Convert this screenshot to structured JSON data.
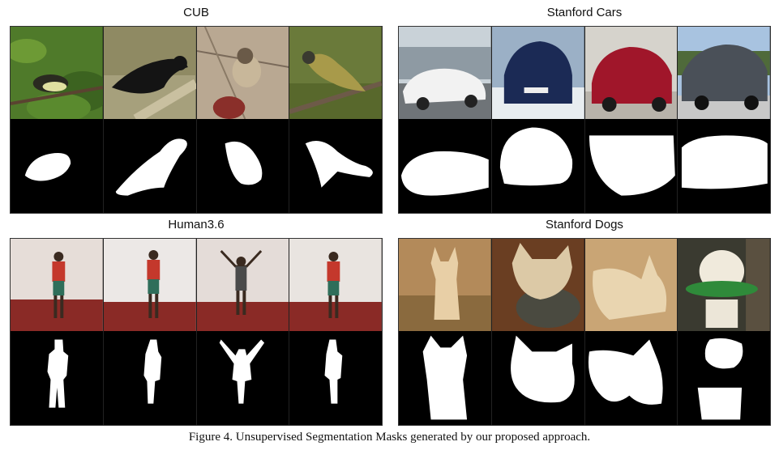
{
  "panels": [
    {
      "title": "CUB",
      "photo_alts": [
        "bird-1-photo",
        "bird-2-photo",
        "bird-3-photo",
        "bird-4-photo"
      ]
    },
    {
      "title": "Stanford Cars",
      "photo_alts": [
        "car-1-photo",
        "car-2-photo",
        "car-3-photo",
        "car-4-photo"
      ]
    },
    {
      "title": "Human3.6",
      "photo_alts": [
        "human-1-photo",
        "human-2-photo",
        "human-3-photo",
        "human-4-photo"
      ]
    },
    {
      "title": "Stanford Dogs",
      "photo_alts": [
        "dog-1-photo",
        "dog-2-photo",
        "dog-3-photo",
        "dog-4-photo"
      ]
    }
  ],
  "caption": "Figure 4. Unsupervised Segmentation Masks generated by our proposed approach."
}
